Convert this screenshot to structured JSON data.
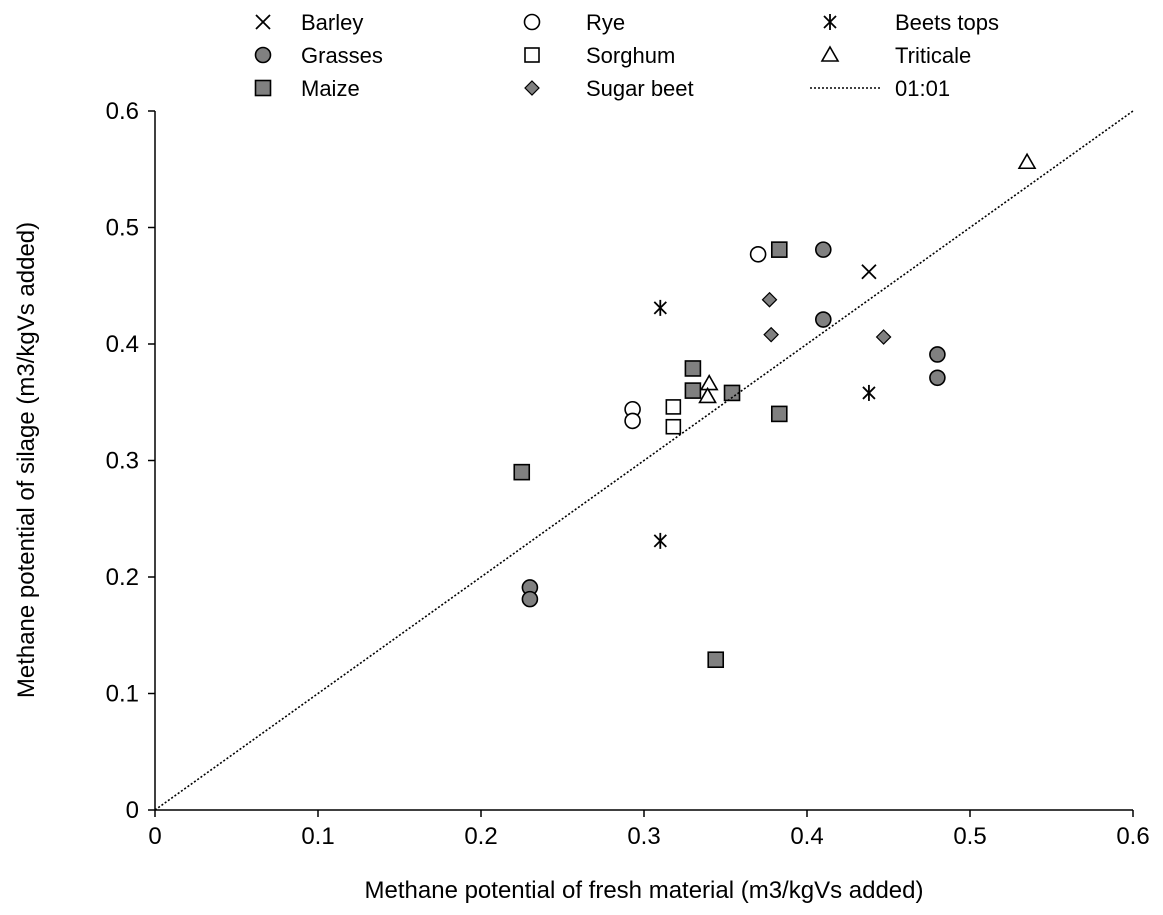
{
  "chart_data": {
    "type": "scatter",
    "xlabel": "Methane potential of fresh material (m3/kgVs added)",
    "ylabel": "Methane potential of silage (m3/kgVs added)",
    "xlim": [
      0,
      0.6
    ],
    "ylim": [
      0,
      0.6
    ],
    "x_ticks": [
      "0",
      "0.1",
      "0.2",
      "0.3",
      "0.4",
      "0.5",
      "0.6"
    ],
    "y_ticks": [
      "0",
      "0.1",
      "0.2",
      "0.3",
      "0.4",
      "0.5",
      "0.6"
    ],
    "grid": false,
    "legend_position": "top",
    "colors": {
      "filled_marker": "#808080",
      "outline": "#000000"
    },
    "series": [
      {
        "name": "Barley",
        "marker": "x",
        "points": [
          [
            0.438,
            0.462
          ]
        ]
      },
      {
        "name": "Grasses",
        "marker": "circle-filled",
        "points": [
          [
            0.41,
            0.481
          ],
          [
            0.41,
            0.421
          ],
          [
            0.48,
            0.391
          ],
          [
            0.48,
            0.371
          ],
          [
            0.23,
            0.191
          ],
          [
            0.23,
            0.181
          ]
        ]
      },
      {
        "name": "Maize",
        "marker": "square-filled",
        "points": [
          [
            0.383,
            0.481
          ],
          [
            0.33,
            0.379
          ],
          [
            0.33,
            0.36
          ],
          [
            0.354,
            0.358
          ],
          [
            0.383,
            0.34
          ],
          [
            0.225,
            0.29
          ],
          [
            0.344,
            0.129
          ]
        ]
      },
      {
        "name": "Rye",
        "marker": "circle-open",
        "points": [
          [
            0.37,
            0.477
          ],
          [
            0.293,
            0.344
          ],
          [
            0.293,
            0.334
          ]
        ]
      },
      {
        "name": "Sorghum",
        "marker": "square-open",
        "points": [
          [
            0.318,
            0.346
          ],
          [
            0.318,
            0.329
          ]
        ]
      },
      {
        "name": "Sugar beet",
        "marker": "diamond-filled",
        "points": [
          [
            0.377,
            0.438
          ],
          [
            0.378,
            0.408
          ],
          [
            0.447,
            0.406
          ]
        ]
      },
      {
        "name": "Beets tops",
        "marker": "asterisk",
        "points": [
          [
            0.31,
            0.431
          ],
          [
            0.438,
            0.358
          ],
          [
            0.31,
            0.231
          ]
        ]
      },
      {
        "name": "Triticale",
        "marker": "triangle-open",
        "points": [
          [
            0.535,
            0.556
          ],
          [
            0.34,
            0.366
          ],
          [
            0.339,
            0.355
          ]
        ]
      },
      {
        "name": "01:01",
        "marker": "dotted-line",
        "points": [
          [
            0,
            0
          ],
          [
            0.6,
            0.6
          ]
        ]
      }
    ]
  }
}
